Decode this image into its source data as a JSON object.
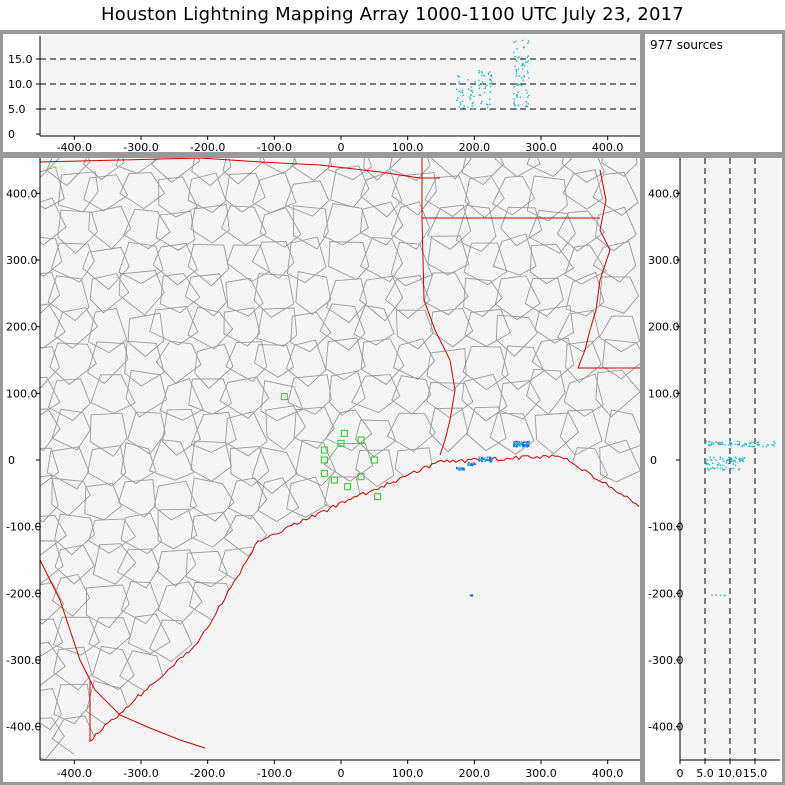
{
  "title": "Houston Lightning Mapping Array   1000-1100 UTC  July 23, 2017",
  "source_count_label": "977 sources",
  "colors": {
    "background": "#ffffff",
    "panel_border": "#999999",
    "plot_bg": "#f4f4f4",
    "county_lines": "#9a9a9a",
    "state_coast_lines": "#d40000",
    "stations": "#22cc22",
    "sources": "#2060ff",
    "sources_alt": "#20b8d0"
  },
  "panels": {
    "altitude_vs_x": {
      "x_ticks": [
        "-400.0",
        "-300.0",
        "-200.0",
        "-100.0",
        "0",
        "100.0",
        "200.0",
        "300.0",
        "400.0"
      ],
      "y_ticks": [
        "0",
        "5.0",
        "10.0",
        "15.0"
      ]
    },
    "plan_view": {
      "x_ticks": [
        "-400.0",
        "-300.0",
        "-200.0",
        "-100.0",
        "0",
        "100.0",
        "200.0",
        "300.0",
        "400.0"
      ],
      "y_ticks": [
        "400.0",
        "300.0",
        "200.0",
        "100.0",
        "0",
        "-100.0",
        "-200.0",
        "-300.0",
        "-400.0"
      ]
    },
    "y_vs_altitude": {
      "x_ticks": [
        "0",
        "5.0",
        "10.0",
        "15.0"
      ],
      "y_ticks": [
        "400.0",
        "300.0",
        "200.0",
        "100.0",
        "0",
        "-100.0",
        "-200.0",
        "-300.0",
        "-400.0"
      ]
    }
  },
  "stations_km": [
    {
      "x": -85,
      "y": 95
    },
    {
      "x": -25,
      "y": 15
    },
    {
      "x": -25,
      "y": 0
    },
    {
      "x": -25,
      "y": -20
    },
    {
      "x": -10,
      "y": -30
    },
    {
      "x": 0,
      "y": 25
    },
    {
      "x": 5,
      "y": 40
    },
    {
      "x": 10,
      "y": -40
    },
    {
      "x": 30,
      "y": 30
    },
    {
      "x": 30,
      "y": -25
    },
    {
      "x": 50,
      "y": 0
    },
    {
      "x": 55,
      "y": -55
    }
  ],
  "source_clusters_km": [
    {
      "x": 270,
      "y": 25,
      "spread": 12,
      "n": 70,
      "alt_min": 5,
      "alt_max": 19
    },
    {
      "x": 215,
      "y": 2,
      "spread": 10,
      "n": 40,
      "alt_min": 5,
      "alt_max": 13
    },
    {
      "x": 178,
      "y": -12,
      "spread": 6,
      "n": 18,
      "alt_min": 5,
      "alt_max": 12
    },
    {
      "x": 195,
      "y": -5,
      "spread": 6,
      "n": 14,
      "alt_min": 5,
      "alt_max": 11
    },
    {
      "x": 195,
      "y": -202,
      "spread": 2,
      "n": 6,
      "alt_min": 6,
      "alt_max": 9
    }
  ]
}
